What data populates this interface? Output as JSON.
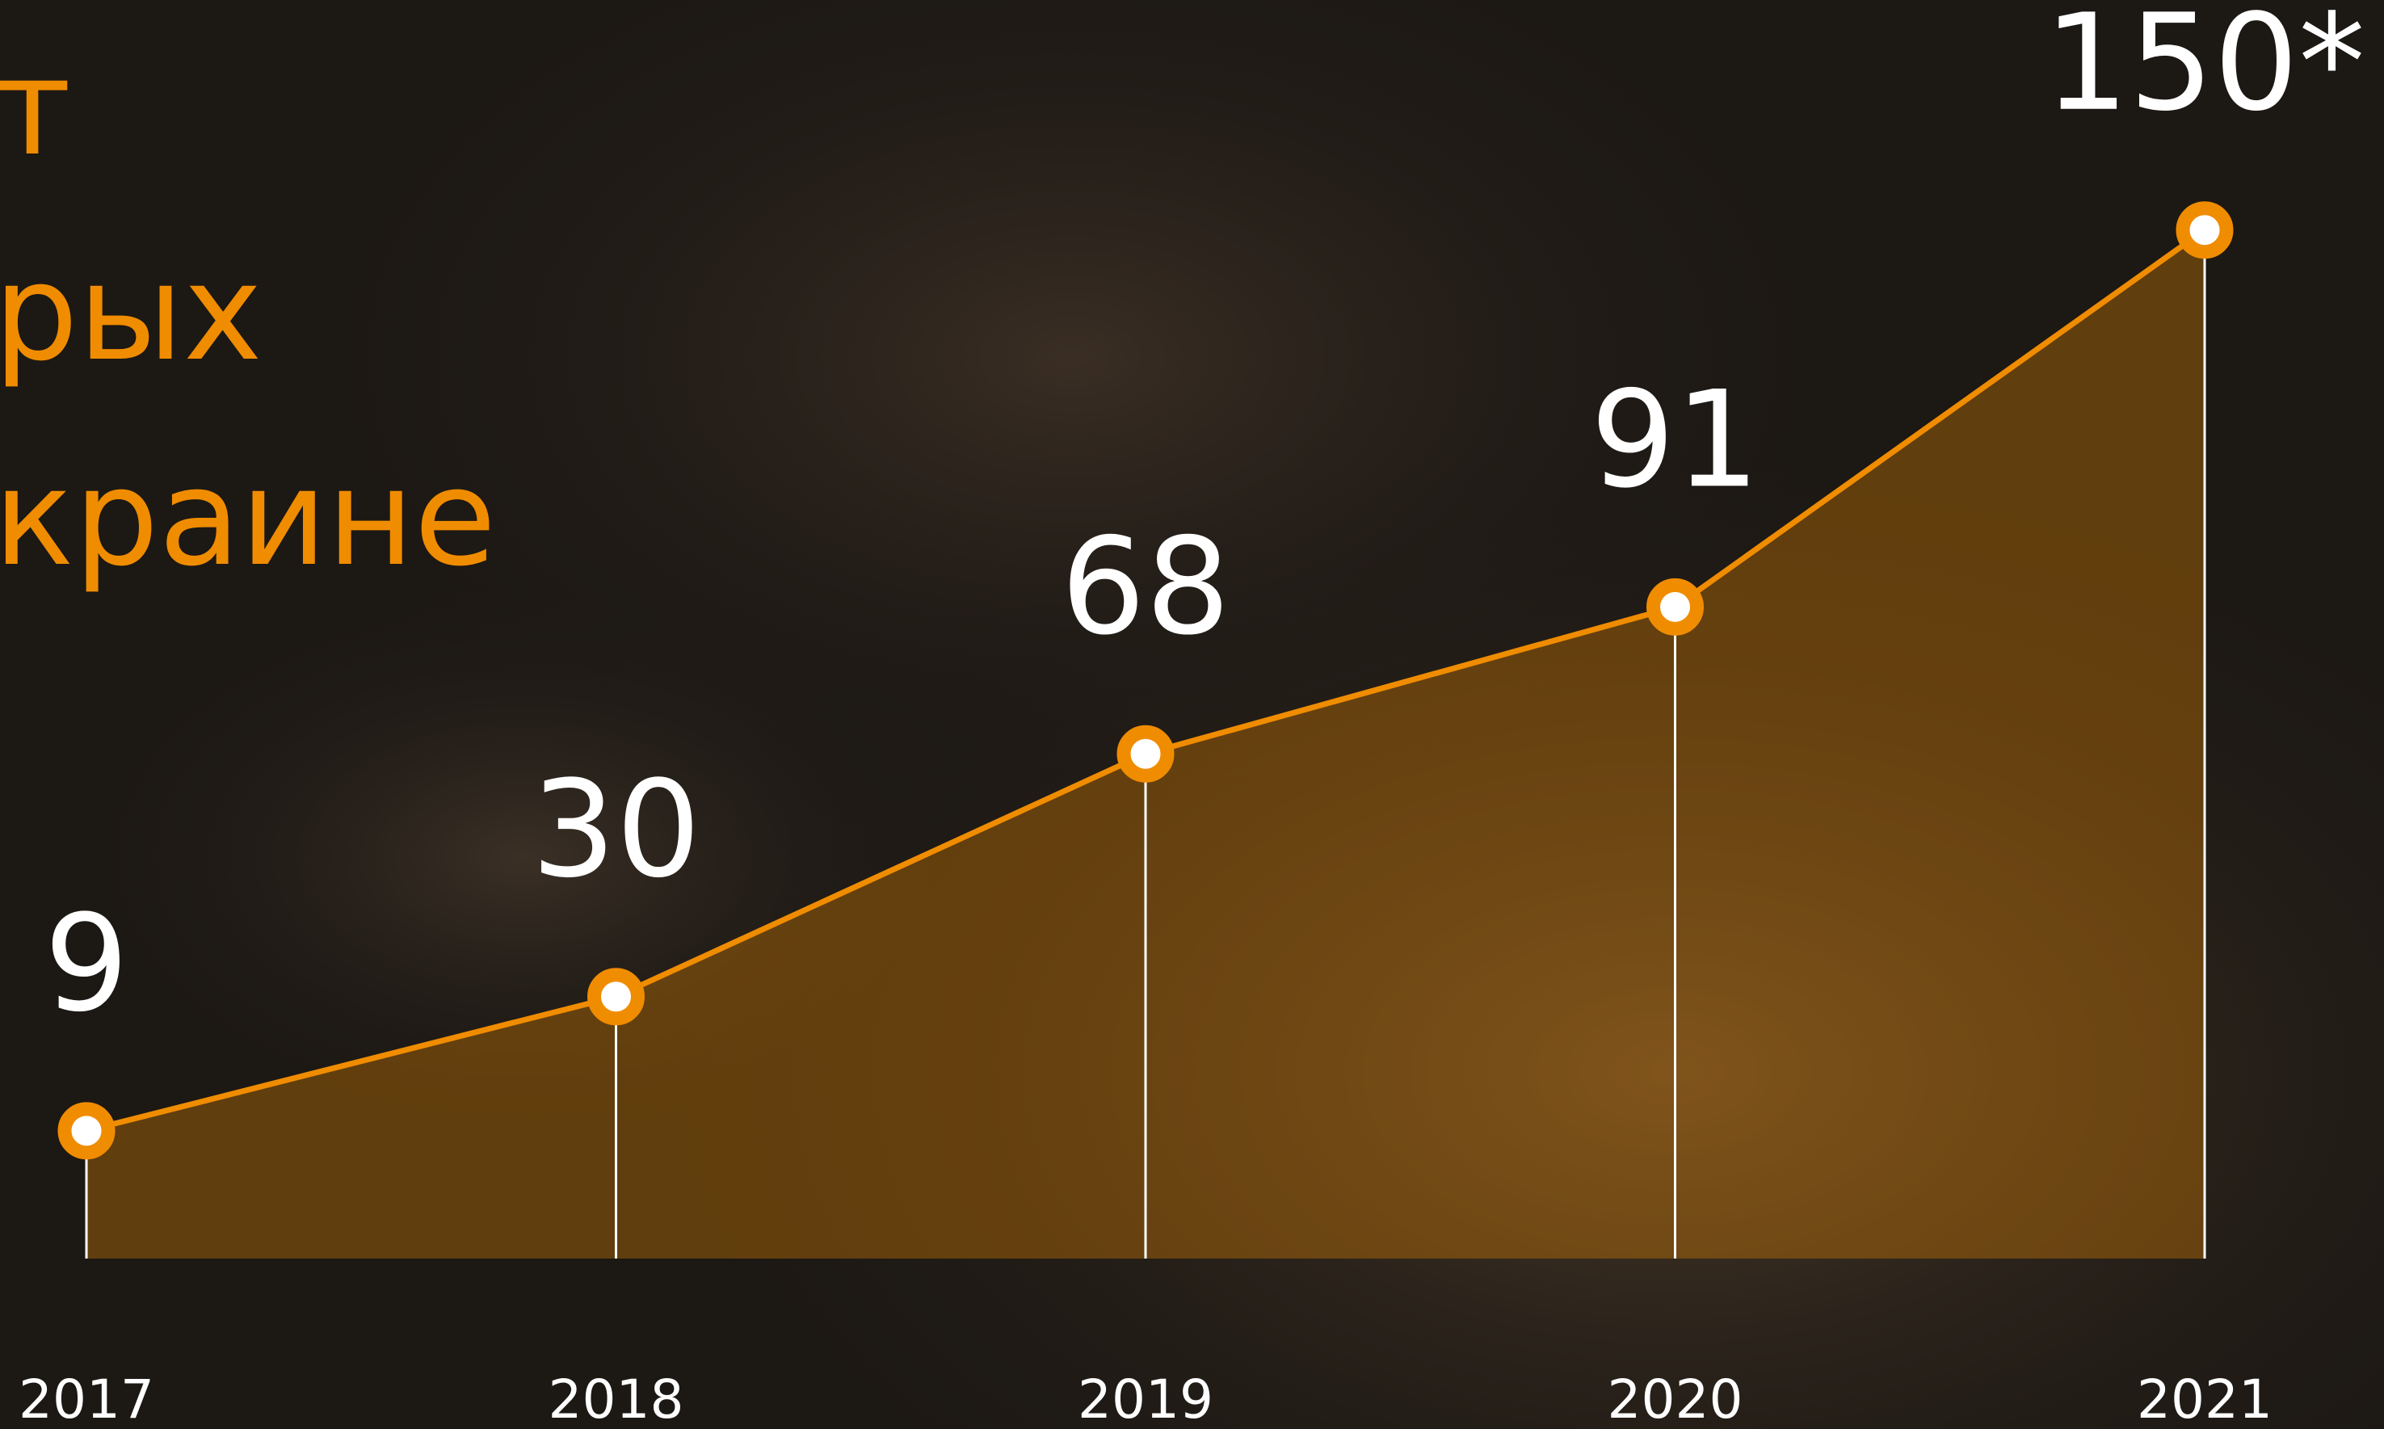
{
  "chart_data": {
    "type": "line",
    "title_lines": [
      "т",
      "рых",
      "краине"
    ],
    "categories": [
      "2017",
      "2018",
      "2019",
      "2020",
      "2021"
    ],
    "values": [
      9,
      30,
      68,
      91,
      150
    ],
    "value_labels": [
      "9",
      "30",
      "68",
      "91",
      "150*"
    ],
    "color": "#f08c00",
    "area": true,
    "ylim": [
      -11,
      175
    ]
  }
}
